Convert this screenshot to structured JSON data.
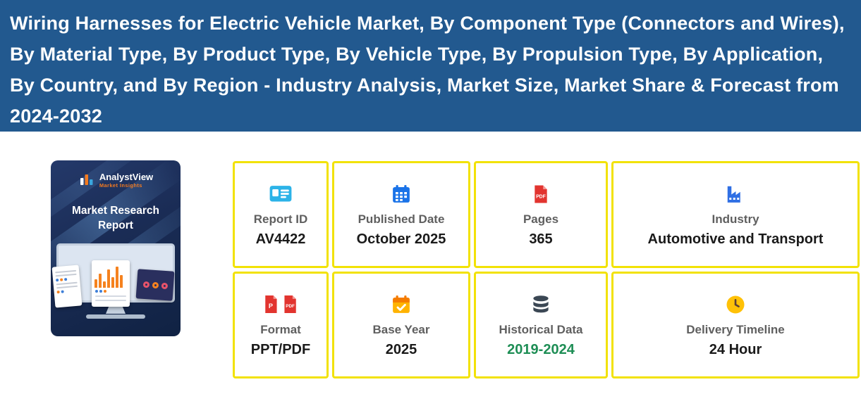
{
  "banner": {
    "title": "Wiring Harnesses for Electric Vehicle Market, By Component Type (Connectors and Wires), By Material Type, By Product Type, By Vehicle Type, By Propulsion Type, By Application, By Country, and By Region - Industry Analysis, Market Size, Market Share & Forecast from 2024-2032",
    "background_color": "#22598f",
    "text_color": "#ffffff"
  },
  "cover": {
    "brand": "AnalystView",
    "brand_tagline": "Market Insights",
    "title": "Market Research Report"
  },
  "cards": [
    {
      "key": "report-id",
      "icon": "id-card",
      "label": "Report ID",
      "value": "AV4422"
    },
    {
      "key": "published-date",
      "icon": "calendar",
      "label": "Published Date",
      "value": "October 2025"
    },
    {
      "key": "pages",
      "icon": "pdf-file",
      "label": "Pages",
      "value": "365"
    },
    {
      "key": "industry",
      "icon": "factory",
      "label": "Industry",
      "value": "Automotive and Transport"
    },
    {
      "key": "format",
      "icon": "ppt-pdf-files",
      "label": "Format",
      "value": "PPT/PDF"
    },
    {
      "key": "base-year",
      "icon": "calendar-check",
      "label": "Base Year",
      "value": "2025"
    },
    {
      "key": "historical-data",
      "icon": "database",
      "label": "Historical Data",
      "value": "2019-2024",
      "value_color": "#1e8e55"
    },
    {
      "key": "delivery-timeline",
      "icon": "clock",
      "label": "Delivery Timeline",
      "value": "24 Hour"
    }
  ],
  "colors": {
    "card_border": "#f2e205",
    "card_label": "#5f5f5f",
    "card_value": "#1a1a1a",
    "historical_data_value": "#1e8e55",
    "banner_blue": "#22598f",
    "accent_orange": "#f47b20"
  }
}
